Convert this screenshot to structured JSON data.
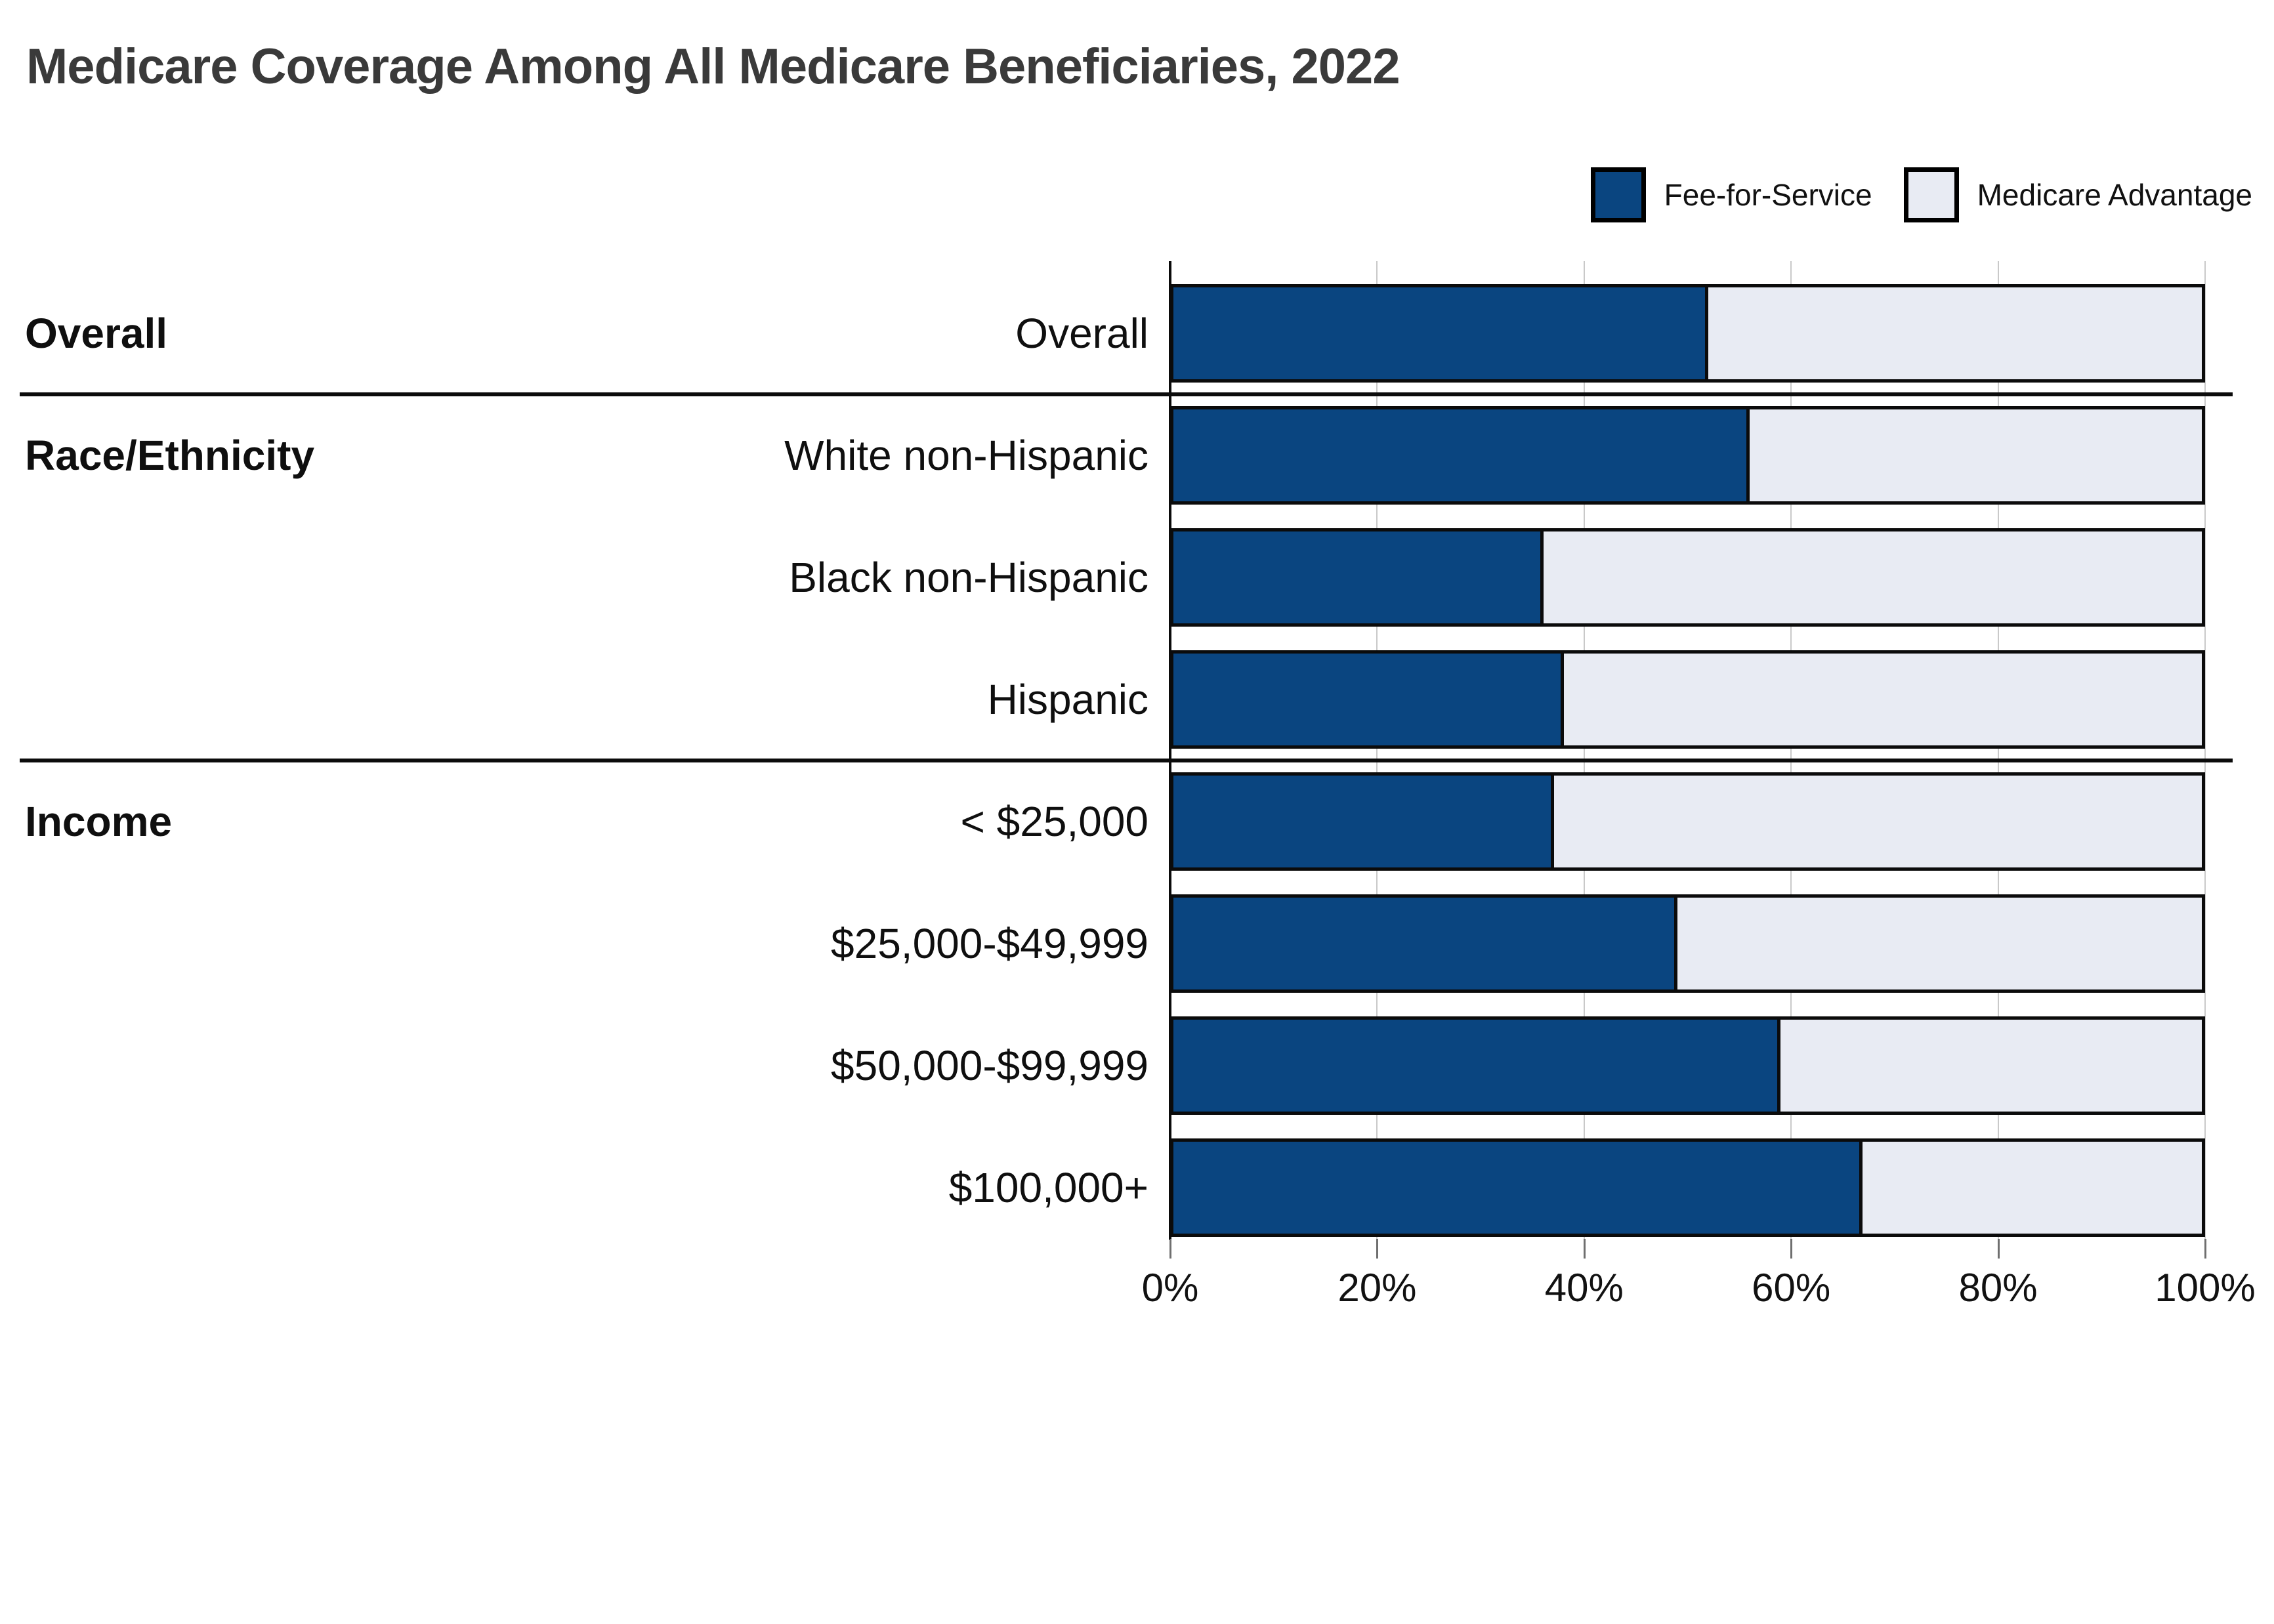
{
  "title": "Medicare Coverage Among All Medicare Beneficiaries, 2022",
  "legend": [
    {
      "label": "Fee-for-Service",
      "color": "#0a4580"
    },
    {
      "label": "Medicare Advantage",
      "color": "#e8ebf3"
    }
  ],
  "colors": {
    "fee_for_service": "#0a4580",
    "medicare_advantage": "#e8ebf3",
    "bar_border": "#0b0b0b",
    "title_text": "#3a3a3a",
    "gridline": "#c9c9c9"
  },
  "chart_data": {
    "type": "bar",
    "stacked": true,
    "orientation": "horizontal",
    "title": "Medicare Coverage Among All Medicare Beneficiaries, 2022",
    "unit": "%",
    "xlim": [
      0,
      100
    ],
    "x_tick_labels": [
      "0%",
      "20%",
      "40%",
      "60%",
      "80%",
      "100%"
    ],
    "x_tick_values": [
      0,
      20,
      40,
      60,
      80,
      100
    ],
    "grid": "vertical",
    "legend_position": "top-right",
    "groups": [
      {
        "name": "Overall",
        "categories": [
          "Overall"
        ]
      },
      {
        "name": "Race/Ethnicity",
        "categories": [
          "White non-Hispanic",
          "Black non-Hispanic",
          "Hispanic"
        ]
      },
      {
        "name": "Income",
        "categories": [
          "< $25,000",
          "$25,000-$49,999",
          "$50,000-$99,999",
          "$100,000+"
        ]
      }
    ],
    "categories": [
      "Overall",
      "White non-Hispanic",
      "Black non-Hispanic",
      "Hispanic",
      "< $25,000",
      "$25,000-$49,999",
      "$50,000-$99,999",
      "$100,000+"
    ],
    "series": [
      {
        "name": "Fee-for-Service",
        "color": "#0a4580",
        "values": [
          52,
          56,
          36,
          38,
          37,
          49,
          59,
          67
        ]
      },
      {
        "name": "Medicare Advantage",
        "color": "#e8ebf3",
        "values": [
          48,
          44,
          64,
          62,
          63,
          51,
          41,
          33
        ]
      }
    ]
  }
}
